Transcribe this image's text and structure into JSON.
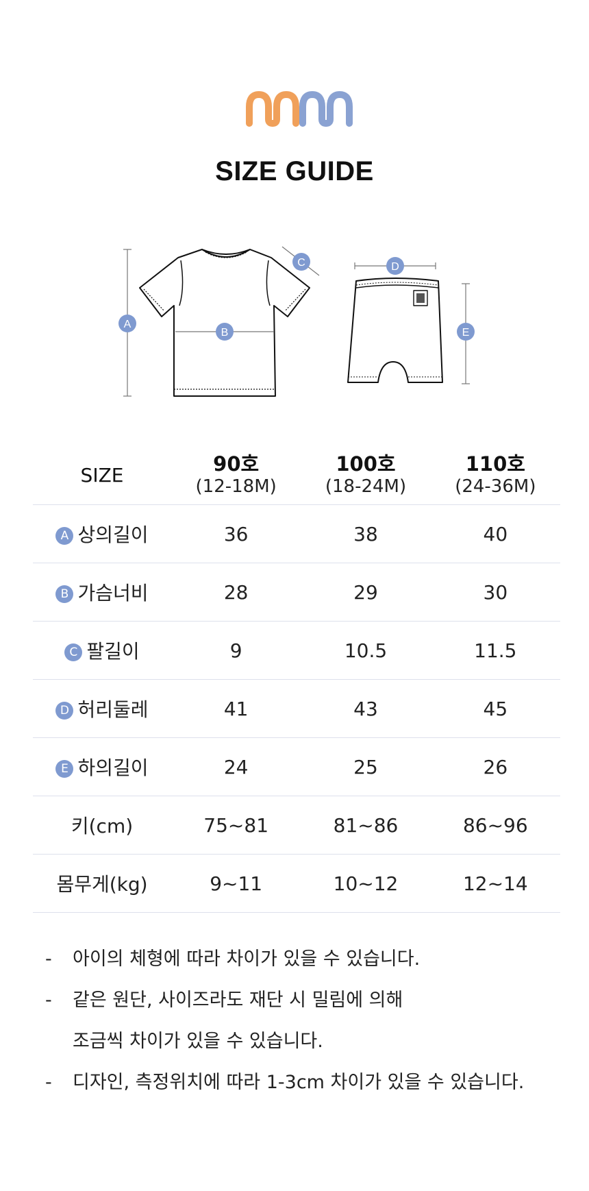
{
  "logo": {
    "name": "mm-logo",
    "colors": {
      "orange": "#f0a05a",
      "blue": "#8aa2d2"
    }
  },
  "title": "SIZE GUIDE",
  "diagram": {
    "top_markers": [
      "A",
      "B",
      "C"
    ],
    "bottom_markers": [
      "D",
      "E"
    ],
    "marker_color": "#7f9ad0"
  },
  "table": {
    "header_label": "SIZE",
    "columns": [
      {
        "size": "90호",
        "months": "(12-18M)"
      },
      {
        "size": "100호",
        "months": "(18-24M)"
      },
      {
        "size": "110호",
        "months": "(24-36M)"
      }
    ],
    "rows": [
      {
        "badge": "A",
        "label": "상의길이",
        "values": [
          "36",
          "38",
          "40"
        ]
      },
      {
        "badge": "B",
        "label": "가슴너비",
        "values": [
          "28",
          "29",
          "30"
        ]
      },
      {
        "badge": "C",
        "label": "팔길이",
        "values": [
          "9",
          "10.5",
          "11.5"
        ]
      },
      {
        "badge": "D",
        "label": "허리둘레",
        "values": [
          "41",
          "43",
          "45"
        ]
      },
      {
        "badge": "E",
        "label": "하의길이",
        "values": [
          "24",
          "25",
          "26"
        ]
      },
      {
        "badge": "",
        "label": "키(cm)",
        "values": [
          "75~81",
          "81~86",
          "86~96"
        ]
      },
      {
        "badge": "",
        "label": "몸무게(kg)",
        "values": [
          "9~11",
          "10~12",
          "12~14"
        ]
      }
    ]
  },
  "notes": {
    "dash": "-",
    "items": [
      "아이의 체형에 따라 차이가 있을 수 있습니다.",
      "같은 원단, 사이즈라도 재단 시 밀림에 의해",
      "조금씩 차이가 있을 수 있습니다.",
      "디자인, 측정위치에 따라 1-3cm 차이가 있을 수 있습니다."
    ]
  }
}
